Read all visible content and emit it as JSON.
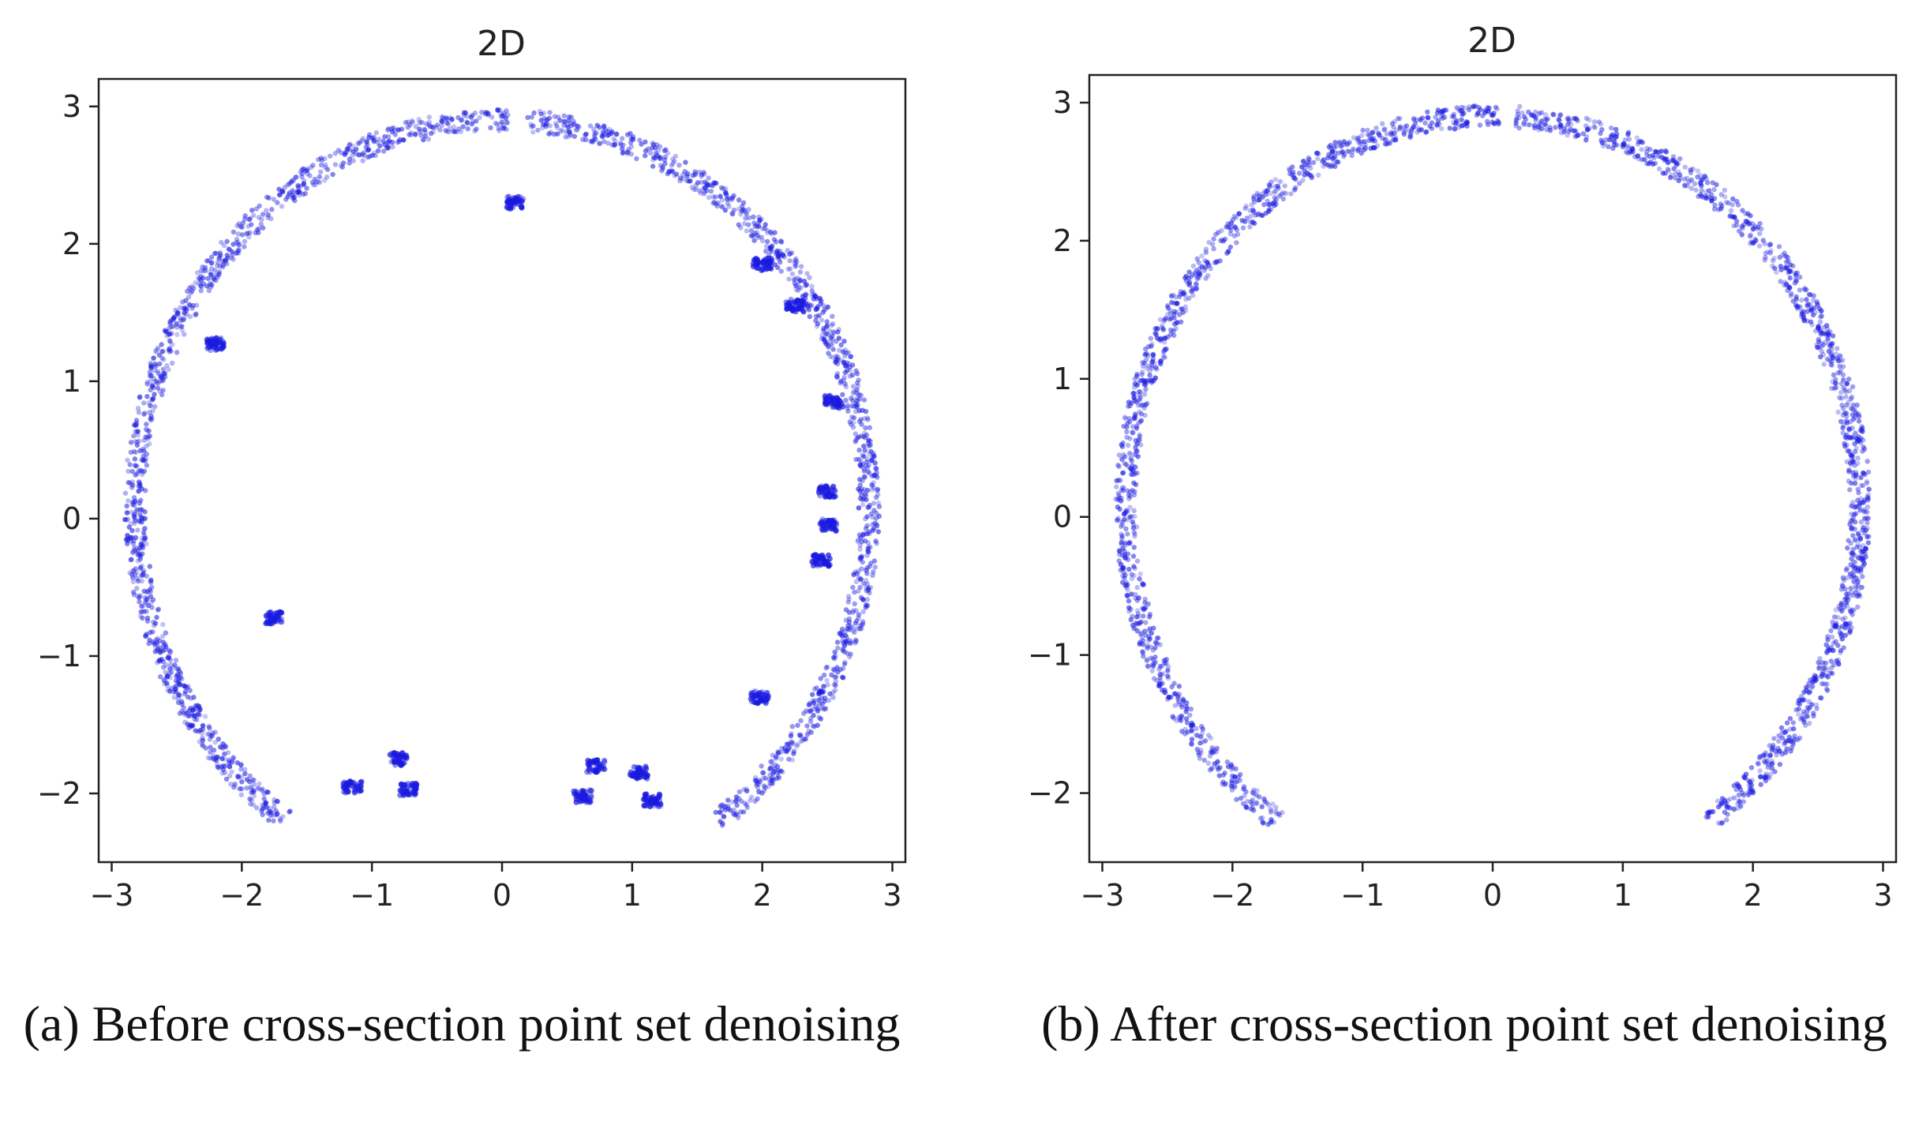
{
  "chart_data": [
    {
      "type": "scatter",
      "title": "2D",
      "xlim": [
        -3.1,
        3.1
      ],
      "ylim": [
        -2.5,
        3.2
      ],
      "xticks": [
        -3,
        -2,
        -1,
        0,
        1,
        2,
        3
      ],
      "yticks": [
        -2,
        -1,
        0,
        1,
        2,
        3
      ],
      "xtick_labels": [
        "−3",
        "−2",
        "−1",
        "0",
        "1",
        "2",
        "3"
      ],
      "ytick_labels": [
        "−2",
        "−1",
        "0",
        "1",
        "2",
        "3"
      ],
      "grid": false,
      "point_color": "#1a1ae0",
      "ring": {
        "cx": 0.0,
        "cy": 0.08,
        "r": 2.82,
        "gap_bottom": [
          -1.5,
          1.5
        ],
        "gap_top": [
          0.05,
          0.18
        ]
      },
      "noise_clusters": [
        {
          "x": 0.1,
          "y": 2.3
        },
        {
          "x": -2.2,
          "y": 1.27
        },
        {
          "x": -1.75,
          "y": -0.72
        },
        {
          "x": -1.15,
          "y": -1.95
        },
        {
          "x": -0.8,
          "y": -1.75
        },
        {
          "x": -0.72,
          "y": -1.97
        },
        {
          "x": 0.62,
          "y": -2.02
        },
        {
          "x": 0.72,
          "y": -1.8
        },
        {
          "x": 1.05,
          "y": -1.85
        },
        {
          "x": 1.15,
          "y": -2.05
        },
        {
          "x": 1.98,
          "y": -1.3
        },
        {
          "x": 2.0,
          "y": 1.85
        },
        {
          "x": 2.25,
          "y": 1.55
        },
        {
          "x": 2.55,
          "y": 0.85
        },
        {
          "x": 2.5,
          "y": 0.2
        },
        {
          "x": 2.5,
          "y": -0.05
        },
        {
          "x": 2.45,
          "y": -0.3
        }
      ],
      "caption": "(a) Before cross-section point set denoising"
    },
    {
      "type": "scatter",
      "title": "2D",
      "xlim": [
        -3.1,
        3.1
      ],
      "ylim": [
        -2.5,
        3.2
      ],
      "xticks": [
        -3,
        -2,
        -1,
        0,
        1,
        2,
        3
      ],
      "yticks": [
        -2,
        -1,
        0,
        1,
        2,
        3
      ],
      "xtick_labels": [
        "−3",
        "−2",
        "−1",
        "0",
        "1",
        "2",
        "3"
      ],
      "ytick_labels": [
        "−2",
        "−1",
        "0",
        "1",
        "2",
        "3"
      ],
      "grid": false,
      "point_color": "#1a1ae0",
      "ring": {
        "cx": 0.0,
        "cy": 0.08,
        "r": 2.82,
        "gap_bottom": [
          -1.5,
          1.5
        ],
        "gap_top": [
          0.05,
          0.18
        ]
      },
      "noise_clusters": [],
      "caption": "(b) After cross-section point set denoising"
    }
  ]
}
